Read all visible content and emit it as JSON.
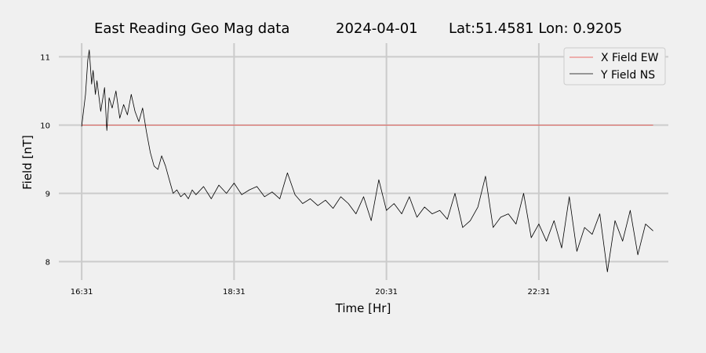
{
  "chart_data": {
    "type": "line",
    "title": {
      "name": "East Reading Geo Mag data",
      "date": "2024-04-01",
      "location": "Lat:51.4581  Lon: 0.9205"
    },
    "xlabel": "Time  [Hr]",
    "ylabel": "Field  [nT]",
    "x_unit": "hours",
    "x_ticks": [
      {
        "label": "16:31",
        "value": 0
      },
      {
        "label": "18:31",
        "value": 2
      },
      {
        "label": "20:31",
        "value": 4
      },
      {
        "label": "22:31",
        "value": 6
      }
    ],
    "xlim": [
      -0.3,
      7.7
    ],
    "ylim": [
      7.73,
      11.2
    ],
    "y_ticks": [
      8,
      9,
      10,
      11
    ],
    "grid": true,
    "legend_position": "top-right",
    "series": [
      {
        "name": "X Field EW",
        "color": "#e8423a",
        "x": [
          0,
          7.5
        ],
        "y": [
          10.0,
          10.0
        ]
      },
      {
        "name": "Y Field NS",
        "color": "#000000",
        "x": [
          0.0,
          0.05,
          0.08,
          0.1,
          0.13,
          0.15,
          0.18,
          0.2,
          0.25,
          0.3,
          0.33,
          0.36,
          0.4,
          0.45,
          0.5,
          0.55,
          0.6,
          0.65,
          0.7,
          0.75,
          0.8,
          0.85,
          0.9,
          0.95,
          1.0,
          1.05,
          1.1,
          1.15,
          1.2,
          1.25,
          1.3,
          1.35,
          1.4,
          1.45,
          1.5,
          1.6,
          1.7,
          1.8,
          1.9,
          2.0,
          2.1,
          2.2,
          2.3,
          2.4,
          2.5,
          2.6,
          2.7,
          2.8,
          2.9,
          3.0,
          3.1,
          3.2,
          3.3,
          3.4,
          3.5,
          3.6,
          3.7,
          3.8,
          3.9,
          4.0,
          4.1,
          4.2,
          4.3,
          4.4,
          4.5,
          4.6,
          4.7,
          4.8,
          4.9,
          5.0,
          5.1,
          5.2,
          5.3,
          5.4,
          5.5,
          5.6,
          5.7,
          5.8,
          5.9,
          6.0,
          6.1,
          6.2,
          6.3,
          6.4,
          6.5,
          6.6,
          6.7,
          6.8,
          6.9,
          7.0,
          7.1,
          7.2,
          7.3,
          7.4,
          7.5
        ],
        "y": [
          9.98,
          10.45,
          10.95,
          11.1,
          10.6,
          10.8,
          10.45,
          10.65,
          10.2,
          10.55,
          9.92,
          10.4,
          10.25,
          10.5,
          10.1,
          10.3,
          10.15,
          10.45,
          10.2,
          10.05,
          10.25,
          9.9,
          9.6,
          9.4,
          9.35,
          9.55,
          9.4,
          9.2,
          9.0,
          9.05,
          8.95,
          9.0,
          8.92,
          9.05,
          8.98,
          9.1,
          8.92,
          9.12,
          9.0,
          9.15,
          8.98,
          9.05,
          9.1,
          8.95,
          9.02,
          8.92,
          9.3,
          8.98,
          8.85,
          8.92,
          8.82,
          8.9,
          8.78,
          8.95,
          8.85,
          8.7,
          8.95,
          8.6,
          9.2,
          8.75,
          8.85,
          8.7,
          8.95,
          8.65,
          8.8,
          8.7,
          8.75,
          8.62,
          9.0,
          8.5,
          8.6,
          8.8,
          9.25,
          8.5,
          8.65,
          8.7,
          8.55,
          9.0,
          8.35,
          8.55,
          8.3,
          8.6,
          8.2,
          8.95,
          8.15,
          8.5,
          8.4,
          8.7,
          7.85,
          8.6,
          8.3,
          8.75,
          8.1,
          8.55,
          8.45
        ]
      }
    ]
  }
}
